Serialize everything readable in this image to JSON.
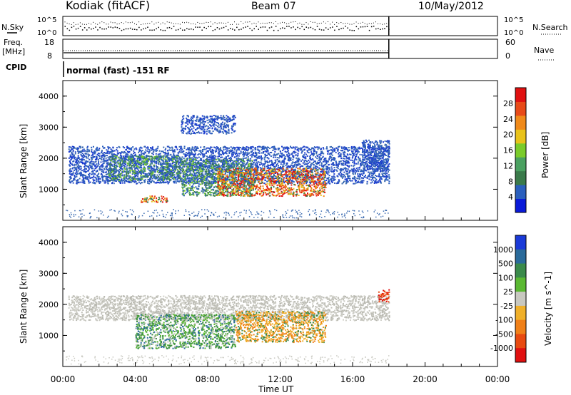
{
  "header": {
    "station": "Kodiak (fitACF)",
    "beam": "Beam 07",
    "date": "10/May/2012"
  },
  "aux_panel": {
    "n_sky_label": "N.Sky",
    "n_sky_top_tick": "10^5",
    "n_sky_bottom_tick": "10^0",
    "n_search_label": "N.Search",
    "freq_label_line1": "Freq.",
    "freq_label_line2": "[MHz]",
    "freq_top_tick": "18",
    "freq_bottom_tick": "8",
    "nave_label": "Nave",
    "nave_top_tick": "60",
    "nave_bottom_tick": "0",
    "cpid_label": "CPID",
    "cpid_text": "normal (fast) -151 RF"
  },
  "chart_data": [
    {
      "type": "heatmap",
      "panel": "power",
      "ylabel": "Slant Range [km]",
      "yticks": [
        "1000",
        "2000",
        "3000",
        "4000"
      ],
      "ylim": [
        0,
        4500
      ],
      "xlim_hours": [
        0,
        24
      ],
      "colorbar": {
        "label": "Power [dB]",
        "ticks": [
          "4",
          "8",
          "12",
          "16",
          "20",
          "24",
          "28"
        ],
        "colors": [
          "#0a1ad8",
          "#2a5fbd",
          "#3a7a4a",
          "#4aa060",
          "#7acb2a",
          "#e8c21a",
          "#f08a1a",
          "#e84a18",
          "#e01010"
        ]
      },
      "regions": [
        {
          "t_start": 0.3,
          "t_end": 18.0,
          "range_start": 1200,
          "range_end": 2400,
          "level": "low"
        },
        {
          "t_start": 2.5,
          "t_end": 6.5,
          "range_start": 1300,
          "range_end": 2100,
          "level": "medium"
        },
        {
          "t_start": 6.5,
          "t_end": 10.5,
          "range_start": 800,
          "range_end": 2000,
          "level": "medium"
        },
        {
          "t_start": 8.5,
          "t_end": 14.5,
          "range_start": 800,
          "range_end": 1700,
          "level": "high"
        },
        {
          "t_start": 4.3,
          "t_end": 5.8,
          "range_start": 600,
          "range_end": 800,
          "level": "high"
        },
        {
          "t_start": 6.5,
          "t_end": 9.5,
          "range_start": 2800,
          "range_end": 3400,
          "level": "low"
        },
        {
          "t_start": 16.5,
          "t_end": 18.0,
          "range_start": 1600,
          "range_end": 2600,
          "level": "low"
        }
      ]
    },
    {
      "type": "heatmap",
      "panel": "velocity",
      "ylabel": "Slant Range [km]",
      "yticks": [
        "1000",
        "2000",
        "3000",
        "4000"
      ],
      "ylim": [
        0,
        4500
      ],
      "xlim_hours": [
        0,
        24
      ],
      "xlabel": "Time UT",
      "xticks": [
        "00:00",
        "04:00",
        "08:00",
        "12:00",
        "16:00",
        "20:00",
        "00:00"
      ],
      "colorbar": {
        "label": "Velocity [m s^-1]",
        "ticks": [
          "1000",
          "500",
          "100",
          "25",
          "-25",
          "-100",
          "-500",
          "-1000"
        ],
        "colors": [
          "#1a3ad8",
          "#2a6a9a",
          "#3a8a4a",
          "#5ab832",
          "#c8c8c0",
          "#f0b02a",
          "#f08018",
          "#e84a10",
          "#e01010"
        ]
      },
      "regions": [
        {
          "t_start": 0.3,
          "t_end": 18.0,
          "range_start": 1500,
          "range_end": 2300,
          "level": "gray"
        },
        {
          "t_start": 4.0,
          "t_end": 9.5,
          "range_start": 600,
          "range_end": 1700,
          "level": "green"
        },
        {
          "t_start": 9.5,
          "t_end": 14.5,
          "range_start": 800,
          "range_end": 1800,
          "level": "orange"
        },
        {
          "t_start": 17.4,
          "t_end": 18.0,
          "range_start": 2100,
          "range_end": 2500,
          "level": "red"
        }
      ]
    }
  ]
}
